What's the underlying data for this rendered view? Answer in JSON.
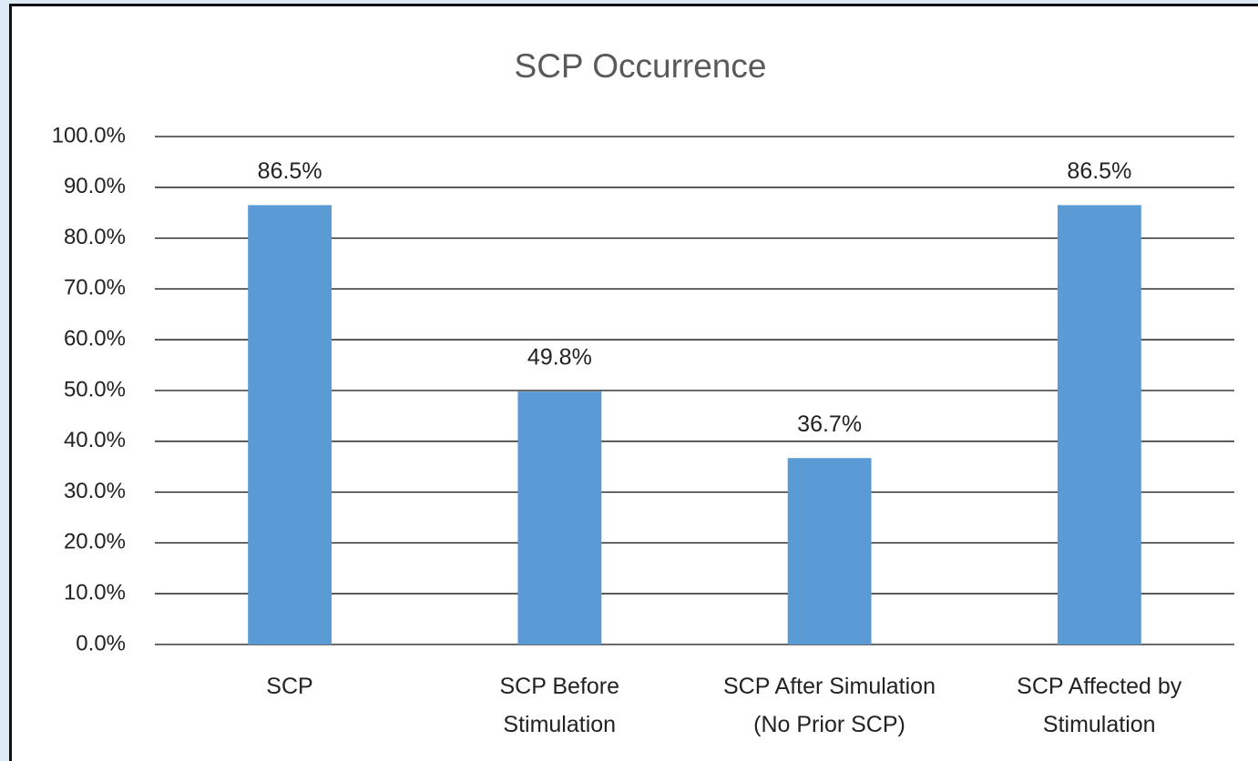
{
  "chart_data": {
    "type": "bar",
    "title": "SCP Occurrence",
    "categories": [
      "SCP",
      "SCP Before\nStimulation",
      "SCP After Simulation\n(No Prior SCP)",
      "SCP Affected by\nStimulation"
    ],
    "values": [
      86.5,
      49.8,
      36.7,
      86.5
    ],
    "value_labels": [
      "86.5%",
      "49.8%",
      "36.7%",
      "86.5%"
    ],
    "color": "#5b9bd5",
    "ylim": [
      0,
      100
    ],
    "yticks": [
      {
        "value": 0,
        "label": "0.0%"
      },
      {
        "value": 10,
        "label": "10.0%"
      },
      {
        "value": 20,
        "label": "20.0%"
      },
      {
        "value": 30,
        "label": "30.0%"
      },
      {
        "value": 40,
        "label": "40.0%"
      },
      {
        "value": 50,
        "label": "50.0%"
      },
      {
        "value": 60,
        "label": "60.0%"
      },
      {
        "value": 70,
        "label": "70.0%"
      },
      {
        "value": 80,
        "label": "80.0%"
      },
      {
        "value": 90,
        "label": "90.0%"
      },
      {
        "value": 100,
        "label": "100.0%"
      }
    ],
    "grid": true
  }
}
